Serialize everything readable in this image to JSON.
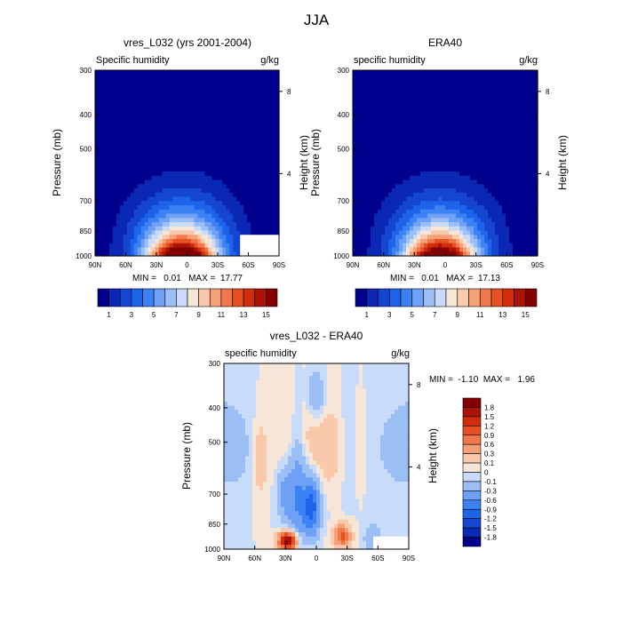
{
  "figure_title": "JJA",
  "chart_data": [
    {
      "type": "heatmap",
      "title": "vres_L032 (yrs 2001-2004)",
      "field_label": "Specific humidity",
      "units": "g/kg",
      "xlabel": "",
      "ylabel": "Pressure (mb)",
      "y2label": "Height (km)",
      "x_ticks": [
        "90N",
        "60N",
        "30N",
        "0",
        "30S",
        "60S",
        "90S"
      ],
      "x_range": [
        90,
        -90
      ],
      "y_ticks": [
        300,
        400,
        500,
        700,
        850,
        1000
      ],
      "y_range": [
        300,
        1000
      ],
      "y_log_scale": true,
      "y2_ticks": [
        8,
        4
      ],
      "min_max_text": "MIN =   0.01   MAX =  17.77",
      "min": 0.01,
      "max": 17.77,
      "field": {
        "peak_lat": 5,
        "peak_value": 17.77,
        "missing_region_lat_min": -52,
        "missing_region_p_min": 870
      },
      "colorbar": {
        "labels": [
          "1",
          "3",
          "5",
          "7",
          "9",
          "11",
          "13",
          "15"
        ],
        "levels": [
          1,
          2,
          3,
          4,
          5,
          6,
          7,
          8,
          9,
          10,
          11,
          12,
          13,
          14,
          15
        ],
        "colors": [
          "#00008c",
          "#0a28b4",
          "#1446d2",
          "#1e64eb",
          "#3c82f5",
          "#6ea0f5",
          "#9bbef5",
          "#c8dcfa",
          "#f5e6d7",
          "#fac8aa",
          "#f5a078",
          "#f0784b",
          "#e65023",
          "#d22d0a",
          "#aa1405",
          "#820000"
        ]
      }
    },
    {
      "type": "heatmap",
      "title": "ERA40",
      "field_label": "specific humidity",
      "units": "g/kg",
      "xlabel": "",
      "ylabel": "Pressure (mb)",
      "y2label": "Height (km)",
      "x_ticks": [
        "90N",
        "60N",
        "30N",
        "0",
        "30S",
        "60S",
        "90S"
      ],
      "x_range": [
        90,
        -90
      ],
      "y_ticks": [
        300,
        400,
        500,
        700,
        850,
        1000
      ],
      "y_range": [
        300,
        1000
      ],
      "y_log_scale": true,
      "y2_ticks": [
        8,
        4
      ],
      "min_max_text": "MIN =   0.01   MAX =  17.13",
      "min": 0.01,
      "max": 17.13,
      "field": {
        "peak_lat": 5,
        "peak_value": 17.13
      },
      "colorbar": {
        "labels": [
          "1",
          "3",
          "5",
          "7",
          "9",
          "11",
          "13",
          "15"
        ],
        "levels": [
          1,
          2,
          3,
          4,
          5,
          6,
          7,
          8,
          9,
          10,
          11,
          12,
          13,
          14,
          15
        ],
        "colors": [
          "#00008c",
          "#0a28b4",
          "#1446d2",
          "#1e64eb",
          "#3c82f5",
          "#6ea0f5",
          "#9bbef5",
          "#c8dcfa",
          "#f5e6d7",
          "#fac8aa",
          "#f5a078",
          "#f0784b",
          "#e65023",
          "#d22d0a",
          "#aa1405",
          "#820000"
        ]
      }
    },
    {
      "type": "heatmap",
      "title": "vres_L032 - ERA40",
      "field_label": "specific humidity",
      "units": "g/kg",
      "xlabel": "",
      "ylabel": "Pressure (mb)",
      "y2label": "Height (km)",
      "x_ticks": [
        "90N",
        "60N",
        "30N",
        "0",
        "30S",
        "60S",
        "90S"
      ],
      "x_range": [
        90,
        -90
      ],
      "y_ticks": [
        300,
        400,
        500,
        700,
        850,
        1000
      ],
      "y_range": [
        300,
        1000
      ],
      "y_log_scale": true,
      "y2_ticks": [
        8,
        4
      ],
      "min_max_text": "MIN =  -1.10  MAX =   1.96",
      "min": -1.1,
      "max": 1.96,
      "colorbar": {
        "labels": [
          "1.8",
          "1.5",
          "1.2",
          "0.9",
          "0.6",
          "0.3",
          "0.1",
          "0",
          "-0.1",
          "-0.3",
          "-0.6",
          "-0.9",
          "-1.2",
          "-1.5",
          "-1.8"
        ],
        "levels": [
          -1.8,
          -1.5,
          -1.2,
          -0.9,
          -0.6,
          -0.3,
          -0.1,
          0,
          0.1,
          0.3,
          0.6,
          0.9,
          1.2,
          1.5,
          1.8
        ],
        "colors": [
          "#00008c",
          "#0a28b4",
          "#1446d2",
          "#1e64eb",
          "#3c82f5",
          "#6ea0f5",
          "#9bbef5",
          "#c8dcfa",
          "#f5e6d7",
          "#fac8aa",
          "#f5a078",
          "#f0784b",
          "#e65023",
          "#d22d0a",
          "#aa1405",
          "#820000"
        ]
      },
      "anomalies": [
        {
          "lat": 18,
          "p_from": 470,
          "p_to": 930,
          "value": -0.6
        },
        {
          "lat": 5,
          "p_from": 630,
          "p_to": 900,
          "value": -1.1
        },
        {
          "lat": 30,
          "p_from": 580,
          "p_to": 820,
          "value": -0.45
        },
        {
          "lat": 28,
          "p_from": 900,
          "p_to": 1000,
          "value": 1.96
        },
        {
          "lat": -25,
          "p_from": 860,
          "p_to": 980,
          "value": 1.0
        },
        {
          "lat": -55,
          "p_from": 850,
          "p_to": 1000,
          "value": -0.3
        },
        {
          "lat": -30,
          "p_from": 330,
          "p_to": 700,
          "value": -0.15
        },
        {
          "lat": 0,
          "p_from": 310,
          "p_to": 430,
          "value": -0.35
        },
        {
          "lat": 55,
          "p_from": 420,
          "p_to": 700,
          "value": 0.25
        }
      ]
    }
  ]
}
